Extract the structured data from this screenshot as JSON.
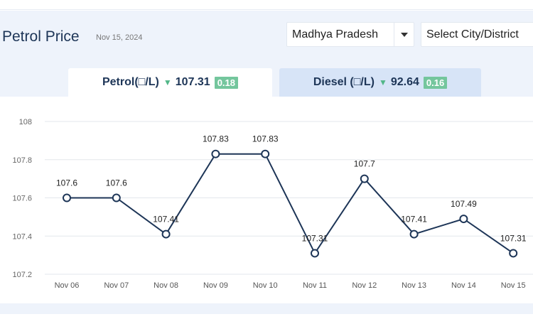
{
  "page": {
    "title": "Petrol Price",
    "date": "Nov 15, 2024"
  },
  "filters": {
    "state": "Madhya Pradesh",
    "city_placeholder": "Select City/District"
  },
  "tabs": [
    {
      "label": "Petrol(□/L)",
      "price": "107.31",
      "change": "0.18",
      "active": true
    },
    {
      "label": "Diesel (□/L)",
      "price": "92.64",
      "change": "0.16",
      "active": false
    }
  ],
  "icons": {
    "trend": "down-triangle-icon",
    "dropdown": "caret-down-icon"
  },
  "colors": {
    "line": "#1d3557",
    "change_badge": "#74c69d",
    "trend_down": "#52b788"
  },
  "chart_data": {
    "type": "line",
    "categories": [
      "Nov 06",
      "Nov 07",
      "Nov 08",
      "Nov 09",
      "Nov 10",
      "Nov 11",
      "Nov 12",
      "Nov 13",
      "Nov 14",
      "Nov 15"
    ],
    "values": [
      107.6,
      107.6,
      107.41,
      107.83,
      107.83,
      107.31,
      107.7,
      107.41,
      107.49,
      107.31
    ],
    "data_labels": [
      "107.6",
      "107.6",
      "107.41",
      "107.83",
      "107.83",
      "107.31",
      "107.7",
      "107.41",
      "107.49",
      "107.31"
    ],
    "yticks": [
      "107.2",
      "107.4",
      "107.6",
      "107.8",
      "108"
    ],
    "ylim": [
      107.2,
      108
    ],
    "grid": true
  }
}
